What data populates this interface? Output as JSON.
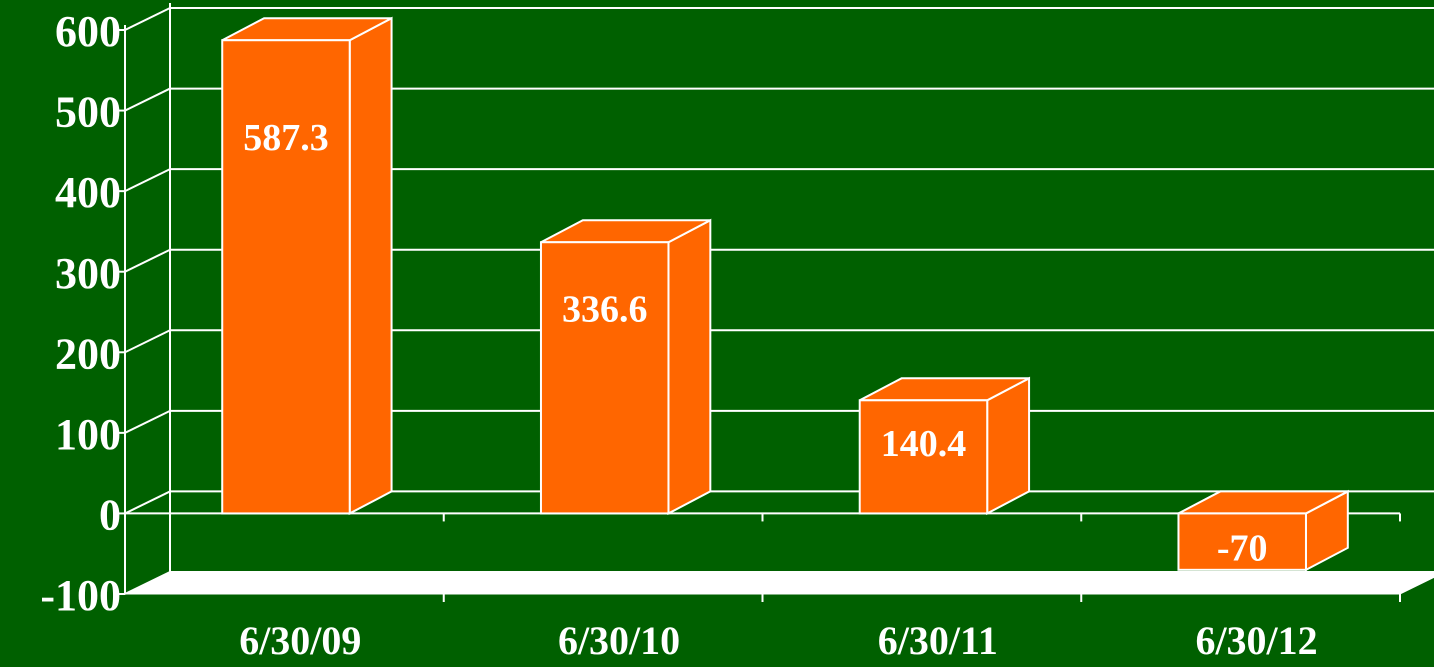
{
  "chart_data": {
    "type": "bar3d",
    "categories": [
      "6/30/09",
      "6/30/10",
      "6/30/11",
      "6/30/12"
    ],
    "values": [
      587.3,
      336.6,
      140.4,
      -70
    ],
    "color": "#ff6600",
    "ylim": [
      -100,
      600
    ],
    "yticks": [
      -100,
      0,
      100,
      200,
      300,
      400,
      500,
      600
    ],
    "grid": true
  }
}
